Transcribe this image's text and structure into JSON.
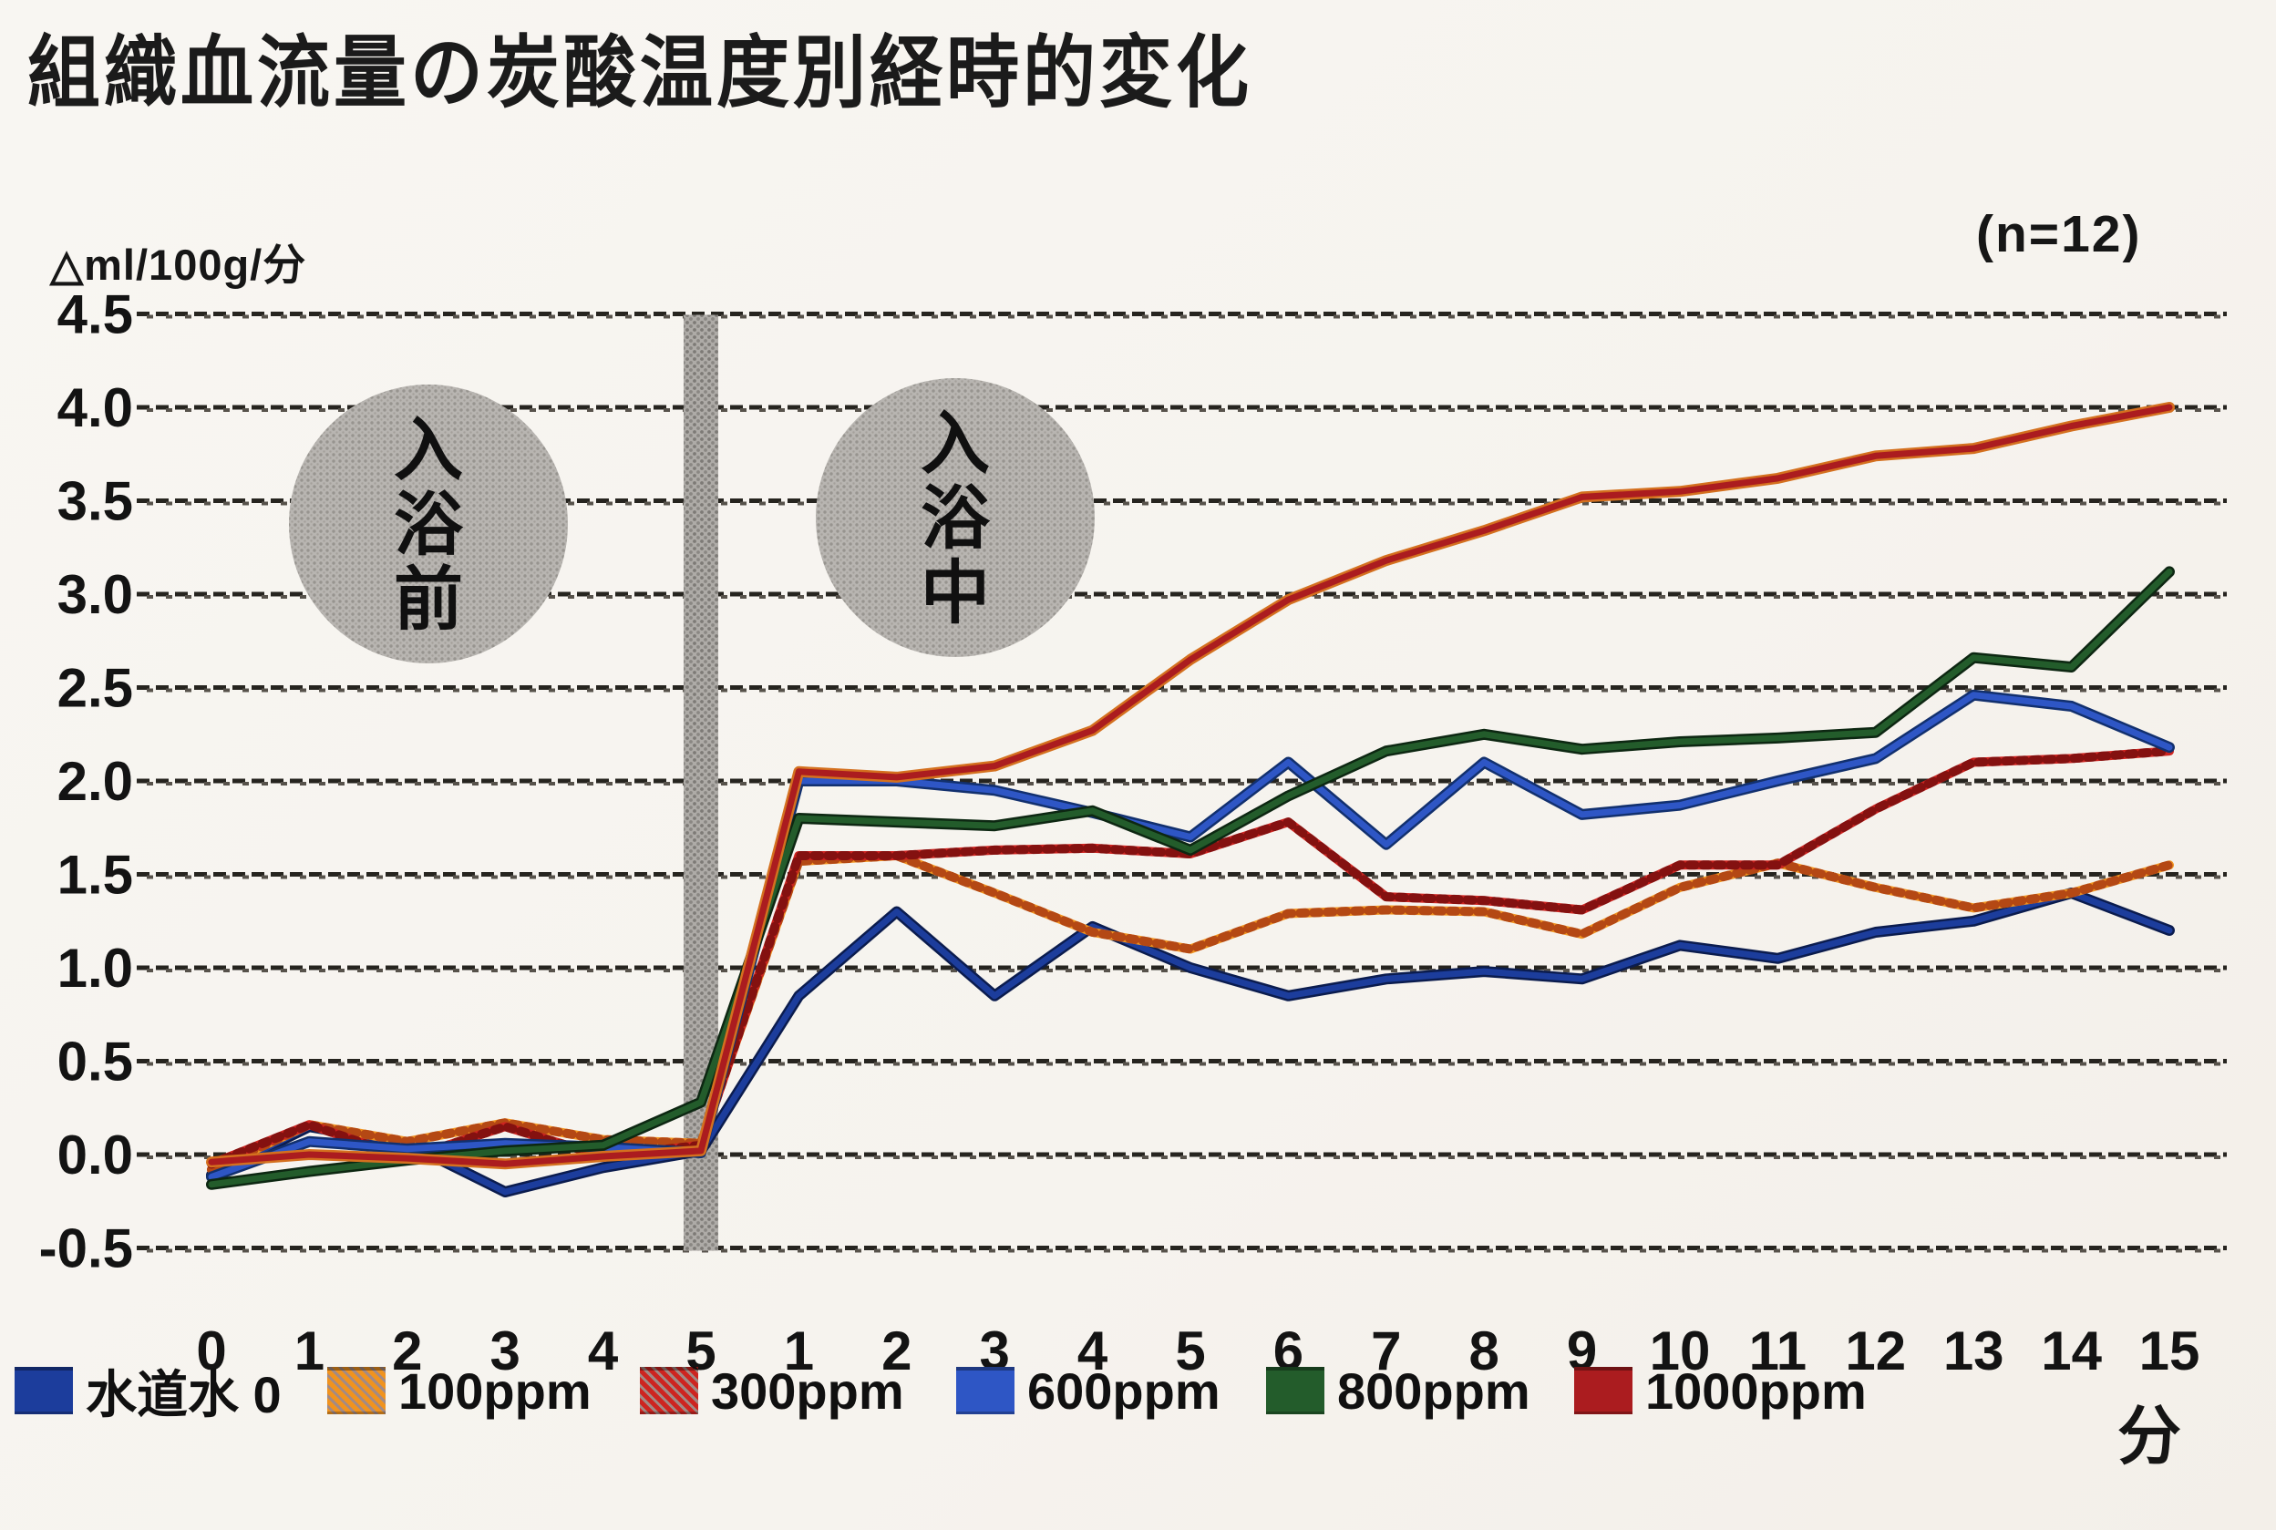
{
  "page": {
    "title": "組織血流量の炭酸温度別経時的変化",
    "y_axis_unit": "△ml/100g/分",
    "sample_size": "(n=12)",
    "x_axis_unit": "分"
  },
  "phases": {
    "before_bath": "入浴前",
    "during_bath": "入浴中"
  },
  "legend": {
    "items": [
      {
        "id": "tap-water",
        "label": "水道水 0",
        "color": "#1c3d9c",
        "hatch": false
      },
      {
        "id": "100ppm",
        "label": "100ppm",
        "color": "#f0931f",
        "hatch": true
      },
      {
        "id": "300ppm",
        "label": "300ppm",
        "color": "#cd2420",
        "hatch": true
      },
      {
        "id": "600ppm",
        "label": "600ppm",
        "color": "#2e56c5",
        "hatch": false
      },
      {
        "id": "800ppm",
        "label": "800ppm",
        "color": "#235c2b",
        "hatch": false
      },
      {
        "id": "1000ppm",
        "label": "1000ppm",
        "color": "#ab1c1f",
        "hatch": false
      }
    ]
  },
  "chart_data": {
    "type": "line",
    "title": "組織血流量の炭酸温度別経時的変化",
    "ylabel": "△ml/100g/分",
    "xlabel": "分",
    "sample_size": "(n=12)",
    "ylim": [
      -0.5,
      4.5
    ],
    "grid": "dashed horizontal lines every 0.5",
    "x_structure": "first 6 ticks are pre-bath minutes 0-5, remaining 15 ticks are bathing minutes 1-15",
    "x_tick_labels": [
      "0",
      "1",
      "2",
      "3",
      "4",
      "5",
      "1",
      "2",
      "3",
      "4",
      "5",
      "6",
      "7",
      "8",
      "9",
      "10",
      "11",
      "12",
      "13",
      "14",
      "15"
    ],
    "y_ticks": [
      {
        "v": 4.5,
        "label": "4.5"
      },
      {
        "v": 4.0,
        "label": "4.0"
      },
      {
        "v": 3.5,
        "label": "3.5"
      },
      {
        "v": 3.0,
        "label": "3.0"
      },
      {
        "v": 2.5,
        "label": "2.5"
      },
      {
        "v": 2.0,
        "label": "2.0"
      },
      {
        "v": 1.5,
        "label": "1.5"
      },
      {
        "v": 1.0,
        "label": "1.0"
      },
      {
        "v": 0.5,
        "label": "0.5"
      },
      {
        "v": 0.0,
        "label": "0.0"
      },
      {
        "v": -0.5,
        "label": "-0.5"
      }
    ],
    "annotations": [
      {
        "id": "before",
        "text": "入浴前"
      },
      {
        "id": "during",
        "text": "入浴中"
      }
    ],
    "series": [
      {
        "id": "tap-water",
        "name": "水道水 0",
        "color": "#1c3d9c",
        "edge": "#0b1c4e",
        "hatch": false,
        "values": [
          -0.11,
          0.15,
          0.06,
          -0.2,
          -0.07,
          0.02,
          0.85,
          1.3,
          0.85,
          1.22,
          1.0,
          0.85,
          0.94,
          0.98,
          0.94,
          1.12,
          1.05,
          1.19,
          1.25,
          1.4,
          1.2
        ]
      },
      {
        "id": "100ppm",
        "name": "100ppm",
        "color": "#f0931f",
        "edge": "#b44814",
        "hatch": true,
        "values": [
          -0.08,
          0.16,
          0.07,
          0.17,
          0.08,
          0.06,
          1.57,
          1.6,
          1.4,
          1.19,
          1.1,
          1.29,
          1.31,
          1.3,
          1.18,
          1.43,
          1.56,
          1.43,
          1.32,
          1.4,
          1.55
        ]
      },
      {
        "id": "300ppm",
        "name": "300ppm",
        "color": "#cd2420",
        "edge": "#841110",
        "hatch": true,
        "values": [
          -0.05,
          0.16,
          -0.02,
          0.15,
          -0.01,
          0.05,
          1.6,
          1.6,
          1.63,
          1.64,
          1.61,
          1.78,
          1.38,
          1.36,
          1.31,
          1.55,
          1.55,
          1.85,
          2.1,
          2.12,
          2.16
        ]
      },
      {
        "id": "600ppm",
        "name": "600ppm",
        "color": "#2e56c5",
        "edge": "#12306e",
        "hatch": false,
        "values": [
          -0.12,
          0.07,
          0.03,
          0.06,
          0.04,
          0.01,
          2.0,
          2.0,
          1.95,
          1.83,
          1.7,
          2.1,
          1.66,
          2.1,
          1.82,
          1.87,
          2.0,
          2.12,
          2.46,
          2.4,
          2.18
        ]
      },
      {
        "id": "800ppm",
        "name": "800ppm",
        "color": "#235c2b",
        "edge": "#0d2712",
        "hatch": false,
        "values": [
          -0.16,
          -0.09,
          -0.03,
          0.02,
          0.05,
          0.28,
          1.8,
          1.78,
          1.76,
          1.84,
          1.63,
          1.92,
          2.16,
          2.25,
          2.17,
          2.21,
          2.23,
          2.26,
          2.66,
          2.61,
          3.12
        ]
      },
      {
        "id": "1000ppm",
        "name": "1000ppm",
        "color": "#ab1c1f",
        "edge": "#d4701f",
        "hatch": false,
        "values": [
          -0.04,
          0.0,
          -0.02,
          -0.05,
          -0.01,
          0.02,
          2.05,
          2.02,
          2.08,
          2.27,
          2.65,
          2.97,
          3.18,
          3.34,
          3.52,
          3.55,
          3.62,
          3.74,
          3.78,
          3.9,
          4.0
        ]
      }
    ]
  }
}
